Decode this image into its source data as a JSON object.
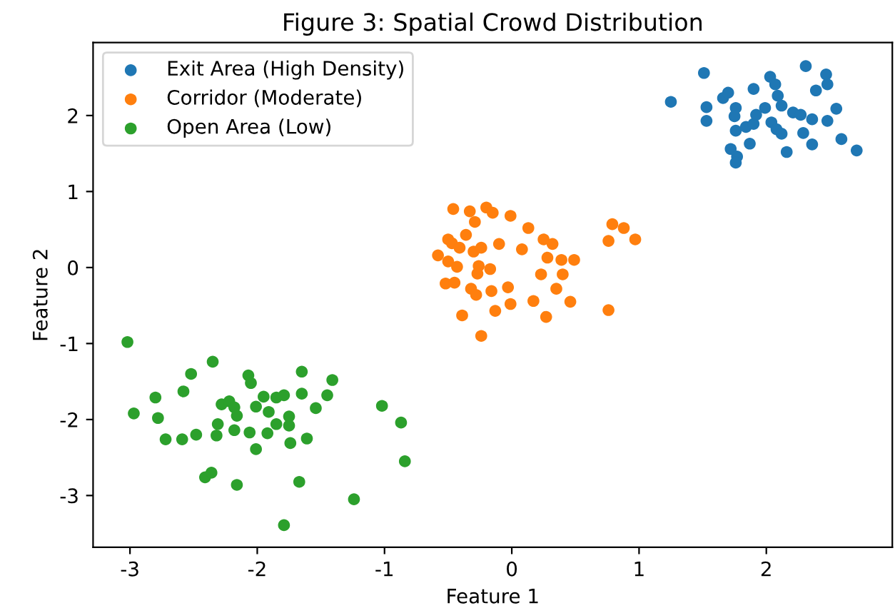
{
  "chart_data": {
    "type": "scatter",
    "title": "Figure 3: Spatial Crowd Distribution",
    "xlabel": "Feature 1",
    "ylabel": "Feature 2",
    "xlim": [
      -3.29,
      2.99
    ],
    "ylim": [
      -3.68,
      2.96
    ],
    "xticks": [
      -3,
      -2,
      -1,
      0,
      1,
      2
    ],
    "yticks": [
      -3,
      -2,
      -1,
      0,
      1,
      2
    ],
    "legend": "top left",
    "grid": false,
    "marker": "circle",
    "series": [
      {
        "name": "Exit Area (High Density)",
        "color": "#1f77b4",
        "x": [
          1.25,
          1.51,
          1.53,
          1.53,
          1.66,
          1.7,
          1.76,
          1.75,
          1.76,
          1.72,
          1.77,
          1.76,
          1.87,
          1.84,
          1.9,
          1.9,
          1.92,
          1.99,
          2.03,
          2.07,
          2.04,
          2.08,
          2.12,
          2.09,
          2.12,
          2.16,
          2.21,
          2.27,
          2.31,
          2.29,
          2.36,
          2.36,
          2.39,
          2.47,
          2.48,
          2.48,
          2.55,
          2.59,
          2.71
        ],
        "values": [
          2.18,
          2.56,
          2.11,
          1.93,
          2.23,
          2.3,
          2.1,
          1.99,
          1.8,
          1.56,
          1.46,
          1.38,
          1.63,
          1.85,
          1.89,
          2.35,
          2.01,
          2.1,
          2.51,
          2.41,
          1.91,
          1.82,
          1.76,
          2.26,
          2.13,
          1.52,
          2.04,
          2.01,
          2.65,
          1.77,
          1.95,
          1.62,
          2.33,
          2.54,
          2.41,
          1.93,
          2.09,
          1.69,
          1.54
        ]
      },
      {
        "name": "Corridor (Moderate)",
        "color": "#ff7f0e",
        "x": [
          -0.46,
          -0.33,
          -0.29,
          -0.2,
          -0.15,
          -0.01,
          0.13,
          -0.36,
          -0.5,
          -0.47,
          -0.41,
          -0.58,
          -0.5,
          -0.43,
          -0.3,
          -0.24,
          -0.1,
          -0.26,
          -0.27,
          -0.17,
          -0.52,
          -0.45,
          -0.32,
          -0.28,
          -0.16,
          -0.03,
          -0.01,
          -0.13,
          -0.39,
          -0.24,
          0.08,
          0.25,
          0.32,
          0.28,
          0.39,
          0.49,
          0.4,
          0.23,
          0.35,
          0.17,
          0.46,
          0.27,
          0.79,
          0.88,
          0.97,
          0.76,
          0.76
        ],
        "values": [
          0.77,
          0.74,
          0.6,
          0.79,
          0.72,
          0.68,
          0.52,
          0.43,
          0.37,
          0.32,
          0.26,
          0.16,
          0.08,
          0.01,
          0.21,
          0.26,
          0.31,
          0.02,
          -0.08,
          -0.02,
          -0.21,
          -0.2,
          -0.28,
          -0.36,
          -0.31,
          -0.26,
          -0.48,
          -0.57,
          -0.63,
          -0.9,
          0.24,
          0.37,
          0.31,
          0.13,
          0.1,
          0.1,
          -0.09,
          -0.09,
          -0.28,
          -0.44,
          -0.45,
          -0.65,
          0.57,
          0.52,
          0.37,
          0.35,
          -0.56
        ]
      },
      {
        "name": "Open Area (Low)",
        "color": "#2ca02c",
        "x": [
          -3.02,
          -2.97,
          -2.8,
          -2.78,
          -2.72,
          -2.59,
          -2.58,
          -2.52,
          -2.48,
          -2.35,
          -2.41,
          -2.36,
          -2.32,
          -2.31,
          -2.28,
          -2.22,
          -2.18,
          -2.16,
          -2.18,
          -2.16,
          -2.07,
          -2.05,
          -2.06,
          -2.01,
          -1.95,
          -1.91,
          -2.01,
          -1.92,
          -1.85,
          -1.79,
          -1.85,
          -1.75,
          -1.75,
          -1.74,
          -1.79,
          -1.65,
          -1.65,
          -1.61,
          -1.67,
          -1.54,
          -1.45,
          -1.41,
          -1.24,
          -1.02,
          -0.87,
          -0.84
        ],
        "values": [
          -0.98,
          -1.92,
          -1.71,
          -1.98,
          -2.26,
          -2.26,
          -1.63,
          -1.4,
          -2.2,
          -1.24,
          -2.76,
          -2.7,
          -2.21,
          -2.06,
          -1.8,
          -1.76,
          -1.84,
          -1.95,
          -2.14,
          -2.86,
          -1.42,
          -1.52,
          -2.17,
          -1.83,
          -1.7,
          -1.9,
          -2.39,
          -2.18,
          -1.71,
          -1.68,
          -2.06,
          -1.96,
          -2.08,
          -2.31,
          -3.39,
          -1.37,
          -1.66,
          -2.25,
          -2.82,
          -1.85,
          -1.68,
          -1.48,
          -3.05,
          -1.82,
          -2.04,
          -2.55
        ]
      }
    ]
  }
}
